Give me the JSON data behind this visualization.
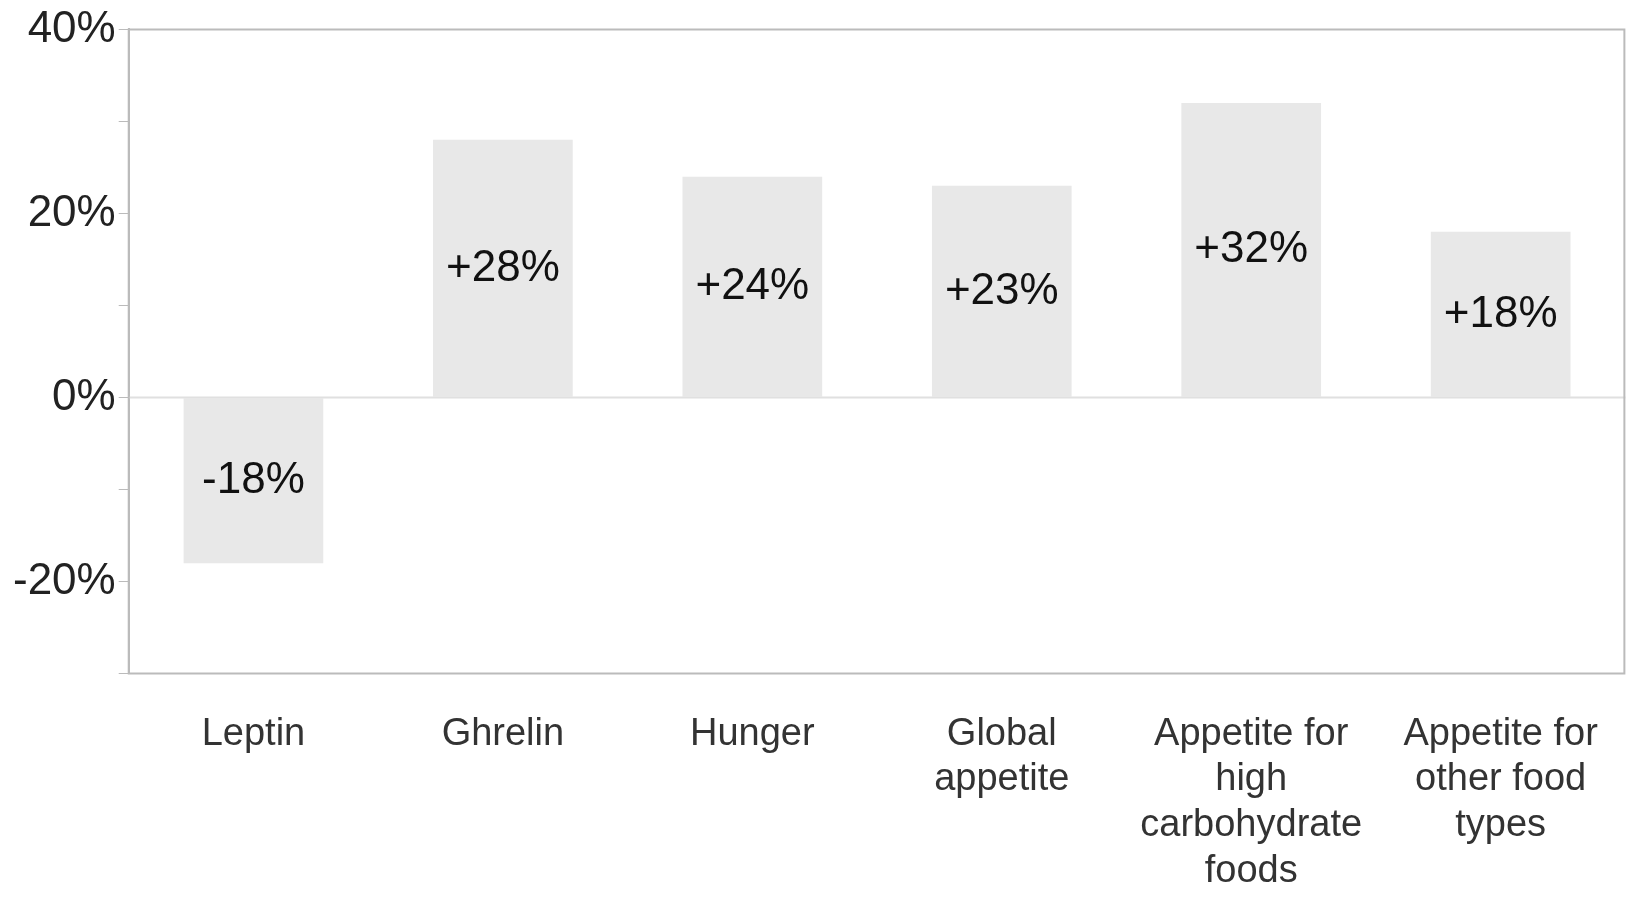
{
  "chart_data": {
    "type": "bar",
    "categories": [
      "Leptin",
      "Ghrelin",
      "Hunger",
      "Global appetite",
      "Appetite for high carbohydrate foods",
      "Appetite for other food types"
    ],
    "values": [
      -18,
      28,
      24,
      23,
      32,
      18
    ],
    "value_labels": [
      "-18%",
      "+28%",
      "+24%",
      "+23%",
      "+32%",
      "+18%"
    ],
    "color": "#e8e8e8",
    "ylim": [
      -30,
      40
    ],
    "yticks": [
      {
        "value": -30,
        "label": null
      },
      {
        "value": -20,
        "label": "-20%"
      },
      {
        "value": -10,
        "label": null
      },
      {
        "value": 0,
        "label": "0%"
      },
      {
        "value": 10,
        "label": null
      },
      {
        "value": 20,
        "label": "20%"
      },
      {
        "value": 30,
        "label": null
      },
      {
        "value": 40,
        "label": "40%"
      }
    ],
    "ref_lines": [
      {
        "axis": "y",
        "value": 0,
        "color": "#e0e0e0"
      }
    ],
    "grid": false,
    "legend": false
  }
}
